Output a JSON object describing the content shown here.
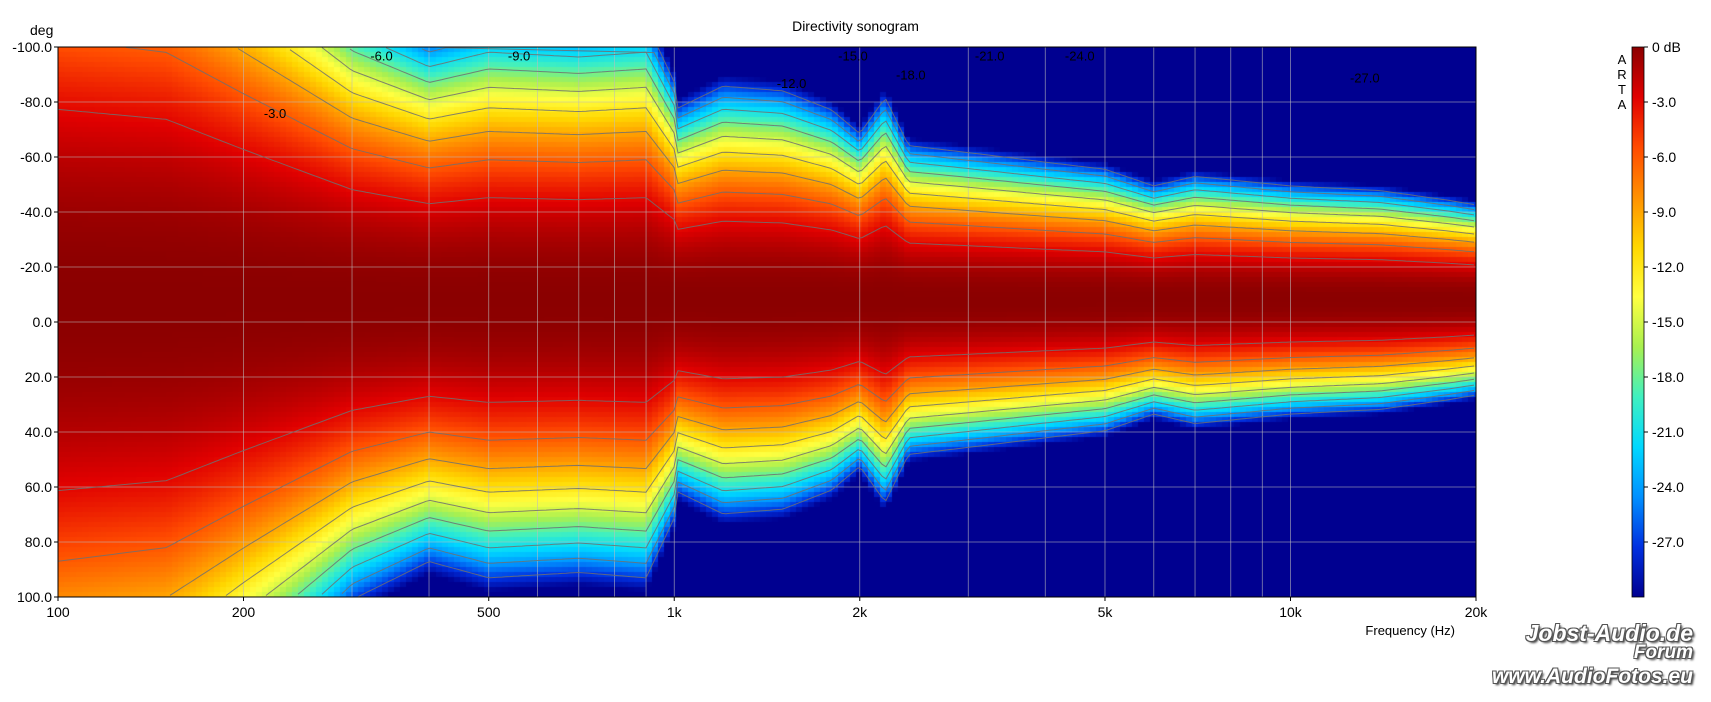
{
  "chart_data": {
    "type": "heatmap",
    "title": "Directivity sonogram",
    "ylabel": "deg",
    "xlabel": "Frequency (Hz)",
    "x_scale": "log",
    "xlim": [
      100,
      20000
    ],
    "ylim": [
      -100,
      100
    ],
    "x_ticks": [
      {
        "value": 100,
        "label": "100"
      },
      {
        "value": 200,
        "label": "200"
      },
      {
        "value": 500,
        "label": "500"
      },
      {
        "value": 1000,
        "label": "1k"
      },
      {
        "value": 2000,
        "label": "2k"
      },
      {
        "value": 5000,
        "label": "5k"
      },
      {
        "value": 10000,
        "label": "10k"
      },
      {
        "value": 20000,
        "label": "20k"
      }
    ],
    "y_ticks": [
      -100,
      -80,
      -60,
      -40,
      -20,
      0,
      20,
      40,
      60,
      80,
      100
    ],
    "y_tick_labels": [
      "-100.0",
      "-80.0",
      "-60.0",
      "-40.0",
      "-20.0",
      "0.0",
      "20.0",
      "40.0",
      "60.0",
      "80.0",
      "100.0"
    ],
    "colorbar": {
      "range": [
        -30,
        0
      ],
      "ticks": [
        0,
        -3,
        -6,
        -9,
        -12,
        -15,
        -18,
        -21,
        -24,
        -27
      ],
      "tick_labels": [
        "0 dB",
        "-3.0",
        "-6.0",
        "-9.0",
        "-12.0",
        "-15.0",
        "-18.0",
        "-21.0",
        "-24.0",
        "-27.0"
      ],
      "colors": [
        "#8b0000",
        "#e00000",
        "#ff4a00",
        "#ff9000",
        "#ffd700",
        "#ffff40",
        "#a8f050",
        "#40f0c0",
        "#00d8ff",
        "#0090ff",
        "#0030e0",
        "#000090"
      ]
    },
    "contour_labels": [
      {
        "label": "-3.0",
        "freq": 225,
        "angle": -76
      },
      {
        "label": "-6.0",
        "freq": 335,
        "angle": -97
      },
      {
        "label": "-9.0",
        "freq": 560,
        "angle": -97
      },
      {
        "label": "-12.0",
        "freq": 1550,
        "angle": -87
      },
      {
        "label": "-15.0",
        "freq": 1950,
        "angle": -97
      },
      {
        "label": "-18.0",
        "freq": 2420,
        "angle": -90
      },
      {
        "label": "-21.0",
        "freq": 3250,
        "angle": -97
      },
      {
        "label": "-24.0",
        "freq": 4550,
        "angle": -97
      },
      {
        "label": "-27.0",
        "freq": 13200,
        "angle": -89
      }
    ],
    "beamwidth_profile": {
      "note_freqs_hz": [
        100,
        150,
        200,
        300,
        400,
        500,
        700,
        900,
        1000,
        1200,
        1500,
        1800,
        2000,
        2200,
        2400,
        3000,
        4000,
        5000,
        6000,
        7000,
        10000,
        14000,
        18000,
        20000
      ],
      "beamwidth_deg": [
        190,
        180,
        150,
        110,
        96,
        102,
        100,
        102,
        80,
        90,
        88,
        80,
        70,
        85,
        65,
        62,
        58,
        55,
        48,
        52,
        48,
        46,
        42,
        40
      ]
    },
    "grid": true,
    "legend": "colorbar right"
  },
  "branding": {
    "line1": "Jobst-Audio.de",
    "line2": "Forum",
    "line3": "www.AudioFotos.eu",
    "arta": [
      "A",
      "R",
      "T",
      "A"
    ]
  }
}
